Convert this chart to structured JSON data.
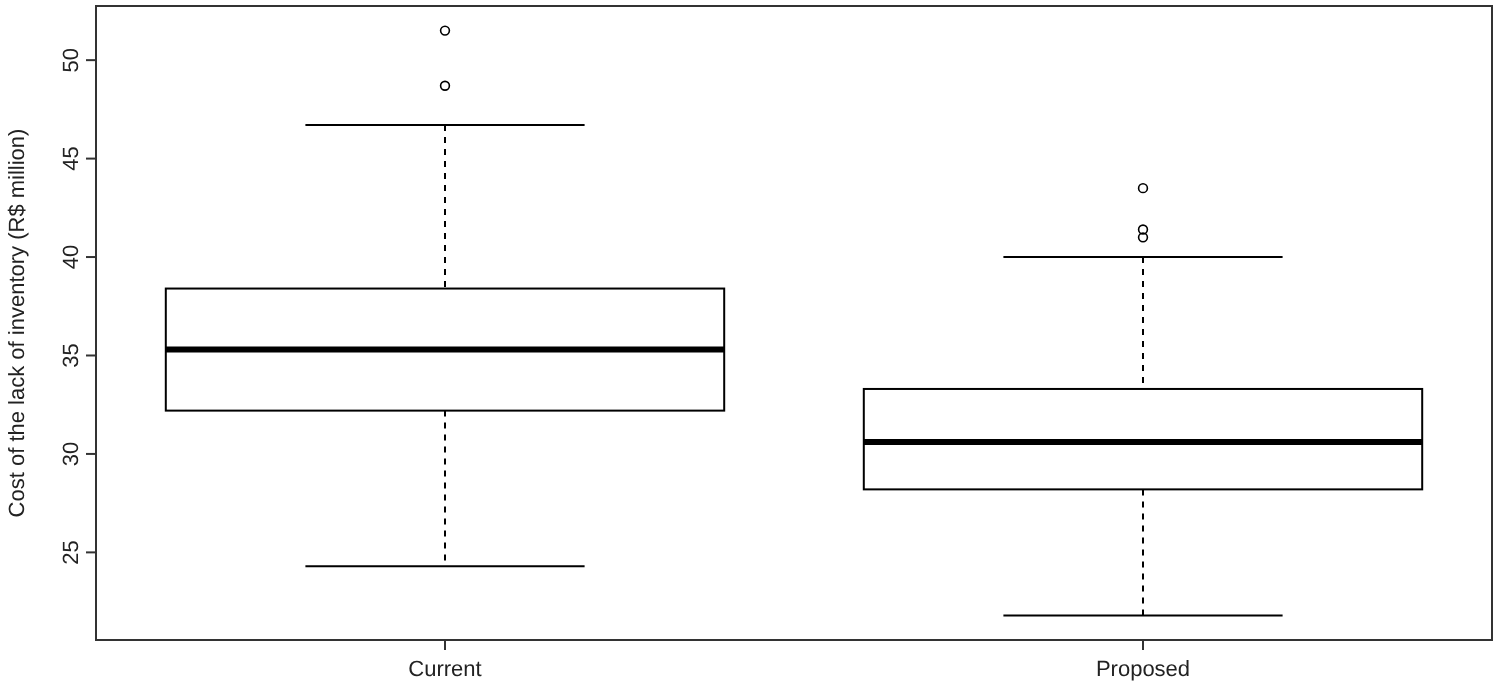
{
  "chart_data": {
    "type": "box",
    "ylabel": "Cost of the lack of inventory (R$ million)",
    "categories": [
      "Current",
      "Proposed"
    ],
    "boxes": [
      {
        "low": 24.3,
        "q1": 32.2,
        "median": 35.3,
        "q3": 38.4,
        "high": 46.7,
        "outliers": [
          48.7,
          51.5
        ]
      },
      {
        "low": 21.8,
        "q1": 28.2,
        "median": 30.6,
        "q3": 33.3,
        "high": 40.0,
        "outliers": [
          41.0,
          41.4,
          43.5
        ]
      }
    ],
    "ylim": [
      20.55,
      52.75
    ],
    "yticks": [
      25,
      30,
      35,
      40,
      45,
      50
    ],
    "grid": false
  }
}
